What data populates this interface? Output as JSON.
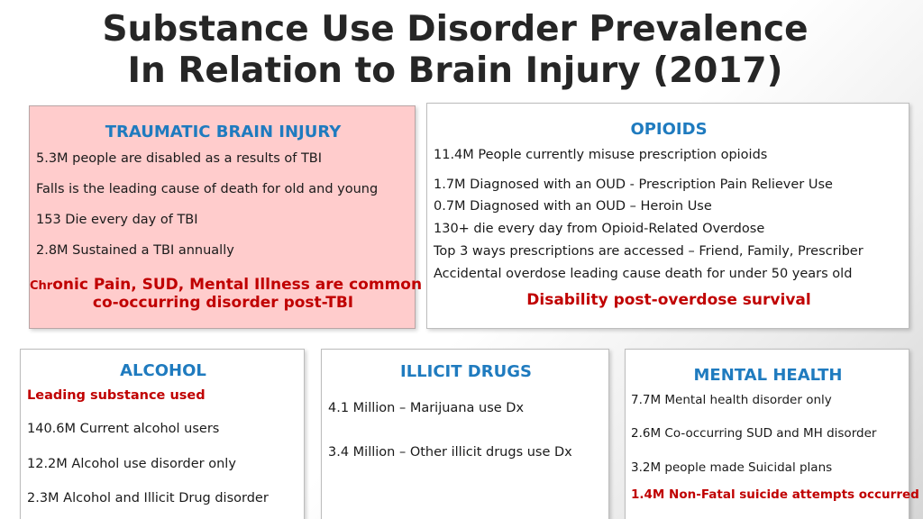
{
  "title": {
    "line1": "Substance Use Disorder Prevalence",
    "line2": "In Relation to Brain Injury (2017)"
  },
  "tbi": {
    "heading": "TRAUMATIC BRAIN INJURY",
    "items": [
      "5.3M people are disabled as a results of TBI",
      "Falls is the leading cause of death for old and young",
      "153 Die every day of TBI",
      "2.8M Sustained a TBI annually"
    ],
    "highlight_prefix": "Chr",
    "highlight_line1": "onic Pain, SUD, Mental Illness are common",
    "highlight_line2": "co-occurring disorder post-TBI"
  },
  "opioids": {
    "heading": "OPIOIDS",
    "items": [
      "11.4M People currently misuse prescription opioids",
      "1.7M Diagnosed with an OUD - Prescription Pain Reliever Use",
      "0.7M Diagnosed with an OUD – Heroin Use",
      "130+ die every day from Opioid-Related Overdose",
      "Top 3 ways prescriptions are accessed – Friend, Family, Prescriber",
      "Accidental overdose leading cause death for under 50 years old"
    ],
    "highlight": "Disability post-overdose survival"
  },
  "alcohol": {
    "heading": "ALCOHOL",
    "highlight": "Leading substance used",
    "items": [
      "140.6M Current alcohol users",
      "12.2M Alcohol use disorder only",
      "2.3M Alcohol and Illicit Drug disorder"
    ]
  },
  "illicit": {
    "heading": "ILLICIT DRUGS",
    "items": [
      "4.1 Million – Marijuana use Dx",
      "3.4 Million – Other illicit drugs use Dx"
    ]
  },
  "mental_health": {
    "heading": "MENTAL HEALTH",
    "items": [
      "7.7M Mental health disorder only",
      "2.6M Co-occurring SUD and MH disorder",
      "3.2M people made Suicidal plans"
    ],
    "highlight": "1.4M Non-Fatal suicide attempts occurred"
  },
  "colors": {
    "heading_blue": "#1f7bbf",
    "highlight_red": "#c00000",
    "tbi_background": "#ffcccc"
  }
}
